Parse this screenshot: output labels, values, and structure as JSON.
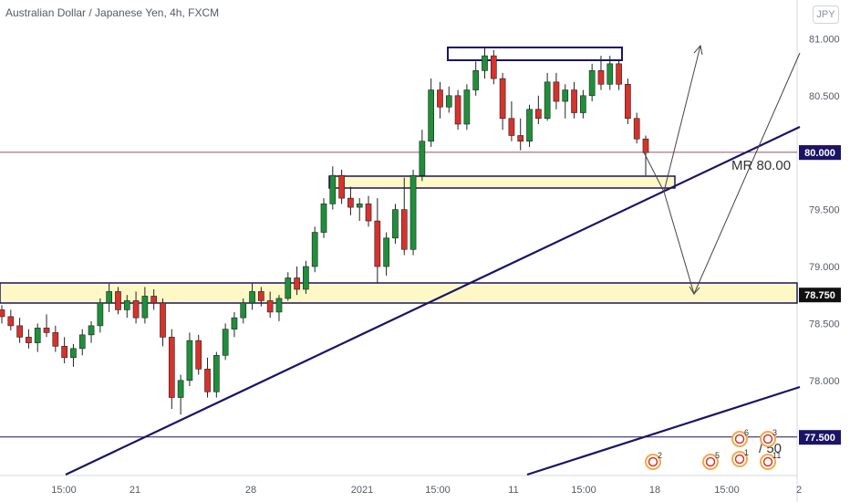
{
  "header": {
    "title": "Australian Dollar / Japanese Yen, 4h, FXCM",
    "currency": "JPY"
  },
  "chart_data": {
    "type": "candlestick",
    "symbol": "AUDJPY",
    "timeframe": "4h",
    "ylim": [
      77.1,
      81.3
    ],
    "y_ticks": [
      "81.000",
      "80.500",
      "80.000",
      "79.500",
      "79.000",
      "78.500",
      "78.000",
      "77.500"
    ],
    "x_ticks": [
      "15:00",
      "21",
      "28",
      "2021",
      "15:00",
      "11",
      "15:00",
      "18",
      "15:00",
      "2"
    ],
    "price_tags": [
      {
        "label": "80.002",
        "value": 80.002,
        "color": "#e53935"
      },
      {
        "label": "80.000",
        "value": 80.0,
        "color": "#1a1466"
      },
      {
        "label": "78.750",
        "value": 78.75,
        "color": "#111111"
      },
      {
        "label": "77.500",
        "value": 77.5,
        "color": "#1a1466"
      }
    ],
    "annotations": [
      {
        "text": "MR 80.00"
      },
      {
        "text": "/ 50"
      }
    ],
    "events": [
      {
        "label": "2"
      },
      {
        "label": "6"
      },
      {
        "label": "3"
      },
      {
        "label": "1"
      },
      {
        "label": "5"
      },
      {
        "label": "11"
      }
    ],
    "candles": [
      {
        "o": 78.62,
        "h": 78.66,
        "l": 78.5,
        "c": 78.56
      },
      {
        "o": 78.56,
        "h": 78.62,
        "l": 78.44,
        "c": 78.48
      },
      {
        "o": 78.48,
        "h": 78.55,
        "l": 78.33,
        "c": 78.38
      },
      {
        "o": 78.38,
        "h": 78.45,
        "l": 78.28,
        "c": 78.33
      },
      {
        "o": 78.33,
        "h": 78.5,
        "l": 78.25,
        "c": 78.46
      },
      {
        "o": 78.46,
        "h": 78.58,
        "l": 78.38,
        "c": 78.42
      },
      {
        "o": 78.42,
        "h": 78.48,
        "l": 78.25,
        "c": 78.3
      },
      {
        "o": 78.3,
        "h": 78.38,
        "l": 78.15,
        "c": 78.2
      },
      {
        "o": 78.2,
        "h": 78.32,
        "l": 78.12,
        "c": 78.28
      },
      {
        "o": 78.28,
        "h": 78.45,
        "l": 78.22,
        "c": 78.4
      },
      {
        "o": 78.4,
        "h": 78.52,
        "l": 78.33,
        "c": 78.48
      },
      {
        "o": 78.48,
        "h": 78.72,
        "l": 78.42,
        "c": 78.68
      },
      {
        "o": 78.68,
        "h": 78.85,
        "l": 78.6,
        "c": 78.78
      },
      {
        "o": 78.78,
        "h": 78.82,
        "l": 78.58,
        "c": 78.62
      },
      {
        "o": 78.62,
        "h": 78.75,
        "l": 78.55,
        "c": 78.7
      },
      {
        "o": 78.7,
        "h": 78.78,
        "l": 78.5,
        "c": 78.55
      },
      {
        "o": 78.55,
        "h": 78.82,
        "l": 78.5,
        "c": 78.74
      },
      {
        "o": 78.74,
        "h": 78.8,
        "l": 78.62,
        "c": 78.68
      },
      {
        "o": 78.68,
        "h": 78.72,
        "l": 78.3,
        "c": 78.38
      },
      {
        "o": 78.38,
        "h": 78.45,
        "l": 77.75,
        "c": 77.85
      },
      {
        "o": 77.85,
        "h": 78.05,
        "l": 77.7,
        "c": 78.0
      },
      {
        "o": 78.0,
        "h": 78.42,
        "l": 77.95,
        "c": 78.35
      },
      {
        "o": 78.35,
        "h": 78.4,
        "l": 78.05,
        "c": 78.1
      },
      {
        "o": 78.1,
        "h": 78.2,
        "l": 77.85,
        "c": 77.9
      },
      {
        "o": 77.9,
        "h": 78.25,
        "l": 77.85,
        "c": 78.22
      },
      {
        "o": 78.22,
        "h": 78.5,
        "l": 78.18,
        "c": 78.45
      },
      {
        "o": 78.45,
        "h": 78.6,
        "l": 78.38,
        "c": 78.55
      },
      {
        "o": 78.55,
        "h": 78.72,
        "l": 78.5,
        "c": 78.68
      },
      {
        "o": 78.68,
        "h": 78.85,
        "l": 78.62,
        "c": 78.78
      },
      {
        "o": 78.78,
        "h": 78.82,
        "l": 78.65,
        "c": 78.7
      },
      {
        "o": 78.7,
        "h": 78.78,
        "l": 78.55,
        "c": 78.6
      },
      {
        "o": 78.6,
        "h": 78.75,
        "l": 78.52,
        "c": 78.72
      },
      {
        "o": 78.72,
        "h": 78.95,
        "l": 78.7,
        "c": 78.9
      },
      {
        "o": 78.9,
        "h": 79.0,
        "l": 78.75,
        "c": 78.8
      },
      {
        "o": 78.8,
        "h": 79.05,
        "l": 78.76,
        "c": 79.0
      },
      {
        "o": 79.0,
        "h": 79.35,
        "l": 78.95,
        "c": 79.3
      },
      {
        "o": 79.3,
        "h": 79.6,
        "l": 79.25,
        "c": 79.55
      },
      {
        "o": 79.55,
        "h": 79.88,
        "l": 79.5,
        "c": 79.8
      },
      {
        "o": 79.8,
        "h": 79.85,
        "l": 79.55,
        "c": 79.6
      },
      {
        "o": 79.6,
        "h": 79.7,
        "l": 79.45,
        "c": 79.52
      },
      {
        "o": 79.52,
        "h": 79.6,
        "l": 79.4,
        "c": 79.55
      },
      {
        "o": 79.55,
        "h": 79.62,
        "l": 79.35,
        "c": 79.4
      },
      {
        "o": 79.4,
        "h": 79.6,
        "l": 78.85,
        "c": 79.0
      },
      {
        "o": 79.0,
        "h": 79.3,
        "l": 78.92,
        "c": 79.25
      },
      {
        "o": 79.25,
        "h": 79.55,
        "l": 79.2,
        "c": 79.5
      },
      {
        "o": 79.5,
        "h": 79.78,
        "l": 79.1,
        "c": 79.15
      },
      {
        "o": 79.15,
        "h": 79.85,
        "l": 79.1,
        "c": 79.8
      },
      {
        "o": 79.8,
        "h": 80.2,
        "l": 79.75,
        "c": 80.1
      },
      {
        "o": 80.1,
        "h": 80.65,
        "l": 80.05,
        "c": 80.55
      },
      {
        "o": 80.55,
        "h": 80.62,
        "l": 80.3,
        "c": 80.4
      },
      {
        "o": 80.4,
        "h": 80.58,
        "l": 80.35,
        "c": 80.5
      },
      {
        "o": 80.5,
        "h": 80.55,
        "l": 80.2,
        "c": 80.25
      },
      {
        "o": 80.25,
        "h": 80.6,
        "l": 80.2,
        "c": 80.55
      },
      {
        "o": 80.55,
        "h": 80.8,
        "l": 80.5,
        "c": 80.72
      },
      {
        "o": 80.72,
        "h": 80.92,
        "l": 80.65,
        "c": 80.85
      },
      {
        "o": 80.85,
        "h": 80.9,
        "l": 80.6,
        "c": 80.65
      },
      {
        "o": 80.65,
        "h": 80.7,
        "l": 80.2,
        "c": 80.3
      },
      {
        "o": 80.3,
        "h": 80.45,
        "l": 80.1,
        "c": 80.15
      },
      {
        "o": 80.15,
        "h": 80.3,
        "l": 80.02,
        "c": 80.1
      },
      {
        "o": 80.1,
        "h": 80.42,
        "l": 80.05,
        "c": 80.38
      },
      {
        "o": 80.38,
        "h": 80.5,
        "l": 80.25,
        "c": 80.3
      },
      {
        "o": 80.3,
        "h": 80.7,
        "l": 80.28,
        "c": 80.62
      },
      {
        "o": 80.62,
        "h": 80.7,
        "l": 80.38,
        "c": 80.45
      },
      {
        "o": 80.45,
        "h": 80.6,
        "l": 80.3,
        "c": 80.55
      },
      {
        "o": 80.55,
        "h": 80.62,
        "l": 80.3,
        "c": 80.35
      },
      {
        "o": 80.35,
        "h": 80.55,
        "l": 80.3,
        "c": 80.5
      },
      {
        "o": 80.5,
        "h": 80.78,
        "l": 80.45,
        "c": 80.72
      },
      {
        "o": 80.72,
        "h": 80.85,
        "l": 80.55,
        "c": 80.6
      },
      {
        "o": 80.6,
        "h": 80.85,
        "l": 80.55,
        "c": 80.78
      },
      {
        "o": 80.78,
        "h": 80.82,
        "l": 80.55,
        "c": 80.6
      },
      {
        "o": 80.6,
        "h": 80.65,
        "l": 80.25,
        "c": 80.3
      },
      {
        "o": 80.3,
        "h": 80.35,
        "l": 80.08,
        "c": 80.12
      },
      {
        "o": 80.12,
        "h": 80.15,
        "l": 79.8,
        "c": 80.0
      }
    ]
  }
}
